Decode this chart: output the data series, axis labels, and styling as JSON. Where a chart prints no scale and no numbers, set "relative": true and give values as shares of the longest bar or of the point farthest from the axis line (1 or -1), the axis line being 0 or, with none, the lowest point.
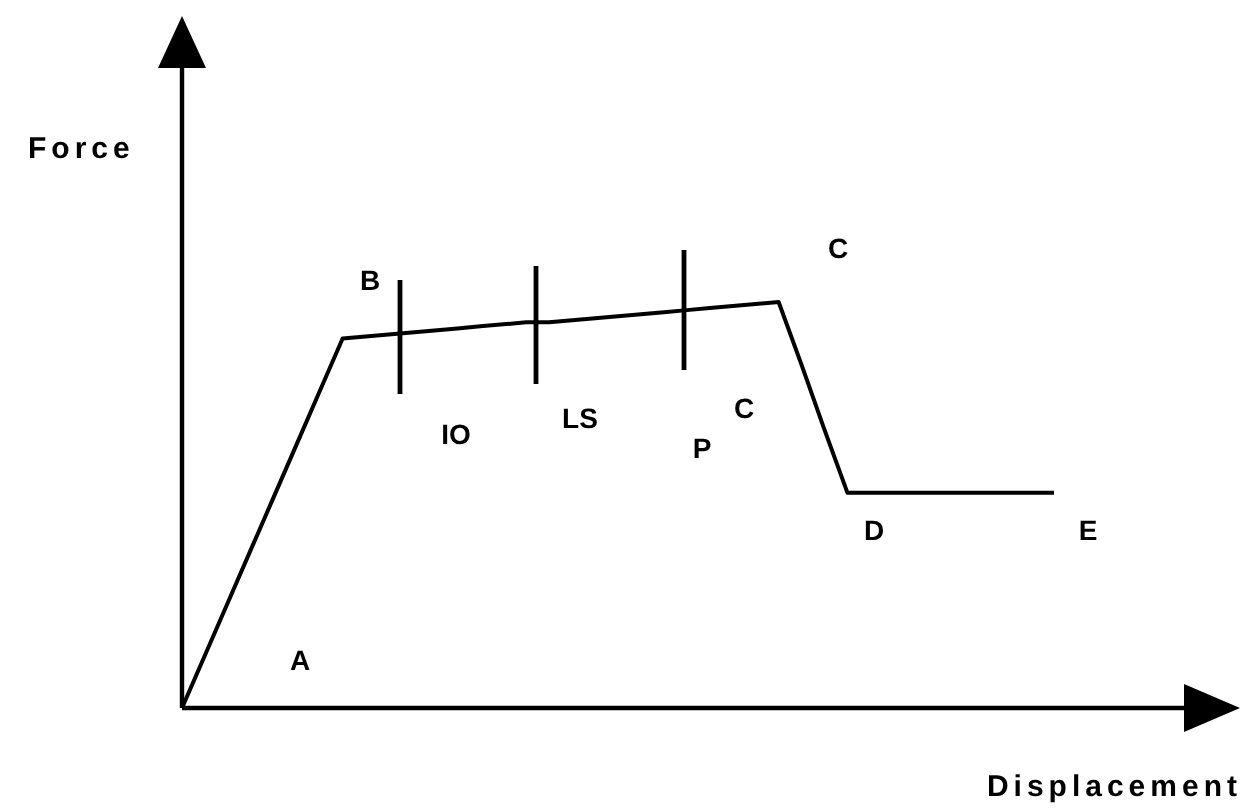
{
  "chart_data": {
    "type": "line",
    "xlabel": "Displacement",
    "ylabel": "Force",
    "relative": true,
    "marker": "none",
    "line_style": "solid",
    "categories": [
      null,
      null,
      null,
      null,
      null,
      null,
      null,
      null,
      null,
      null,
      null,
      null,
      null,
      null,
      null,
      null,
      null,
      null,
      null,
      null,
      null,
      null,
      null,
      null,
      null,
      null,
      null,
      null,
      null,
      null,
      null,
      null,
      null,
      null,
      null,
      null,
      null,
      null,
      null
    ],
    "series": [
      {
        "color": "#000000",
        "values": [
          0,
          0.13,
          0.26,
          0.39,
          0.52,
          0.65,
          0.78,
          0.91,
          0.915,
          0.92,
          0.925,
          0.93,
          0.935,
          0.94,
          0.945,
          0.95,
          0.95,
          0.955,
          0.96,
          0.965,
          0.97,
          0.975,
          0.98,
          0.985,
          0.99,
          0.995,
          1,
          0.845,
          0.685,
          0.53,
          0.53,
          0.53,
          0.53,
          0.53,
          0.53,
          0.53,
          0.53,
          0.53,
          0.53
        ]
      }
    ],
    "annotations": [
      "A",
      "B",
      "C",
      "IO",
      "LS",
      "P",
      "C",
      "D",
      "E"
    ]
  }
}
